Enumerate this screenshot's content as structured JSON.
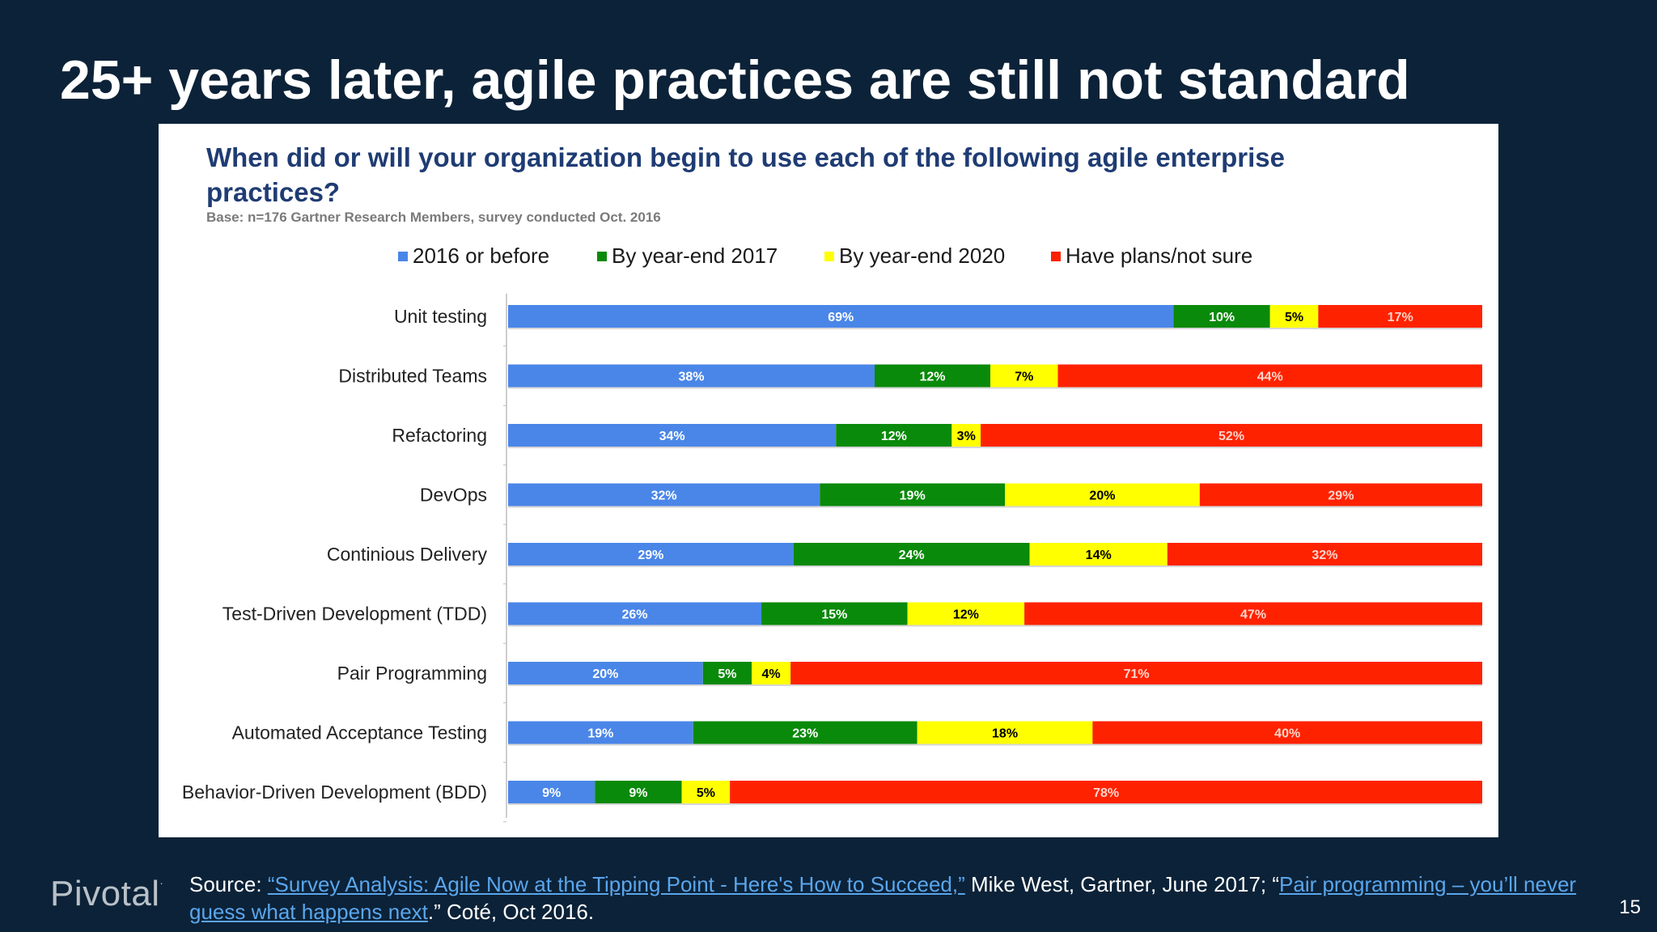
{
  "slide": {
    "title": "25+ years later, agile practices are still not standard",
    "page_number": "15"
  },
  "footer": {
    "logo_text": "Pivotal",
    "source_prefix": "Source: ",
    "link1_text": "“Survey Analysis: Agile Now at the Tipping Point - Here's How to Succeed,”",
    "middle_text": " Mike West, Gartner, June 2017; “",
    "link2_text": "Pair programming – you’ll never guess what happens next",
    "suffix_text": ".” Coté, Oct 2016."
  },
  "colors": {
    "slide_background": "#0c2238",
    "series": [
      "#4a86e8",
      "#0a8a0a",
      "#ffff00",
      "#ff2200"
    ]
  },
  "chart_data": {
    "type": "bar",
    "orientation": "horizontal",
    "stacked": true,
    "percent_stacked": true,
    "title": "When did or will your organization begin to use each of the following agile enterprise practices?",
    "subtitle": "Base: n=176 Gartner Research Members, survey conducted Oct. 2016",
    "legend_position": "top",
    "categories": [
      "Unit testing",
      "Distributed Teams",
      "Refactoring",
      "DevOps",
      "Continious Delivery",
      "Test-Driven Development (TDD)",
      "Pair Programming",
      "Automated Acceptance Testing",
      "Behavior-Driven Development (BDD)"
    ],
    "series": [
      {
        "name": "2016 or before",
        "color": "#4a86e8",
        "label_color": "#ffffff",
        "values": [
          69,
          38,
          34,
          32,
          29,
          26,
          20,
          19,
          9
        ]
      },
      {
        "name": "By year-end 2017",
        "color": "#0a8a0a",
        "label_color": "#ffffff",
        "values": [
          10,
          12,
          12,
          19,
          24,
          15,
          5,
          23,
          9
        ]
      },
      {
        "name": "By year-end 2020",
        "color": "#ffff00",
        "label_color": "#000000",
        "values": [
          5,
          7,
          3,
          20,
          14,
          12,
          4,
          18,
          5
        ]
      },
      {
        "name": "Have plans/not sure",
        "color": "#ff2200",
        "label_color": "#ffd6cc",
        "values": [
          17,
          44,
          52,
          29,
          32,
          47,
          71,
          40,
          78
        ]
      }
    ]
  }
}
